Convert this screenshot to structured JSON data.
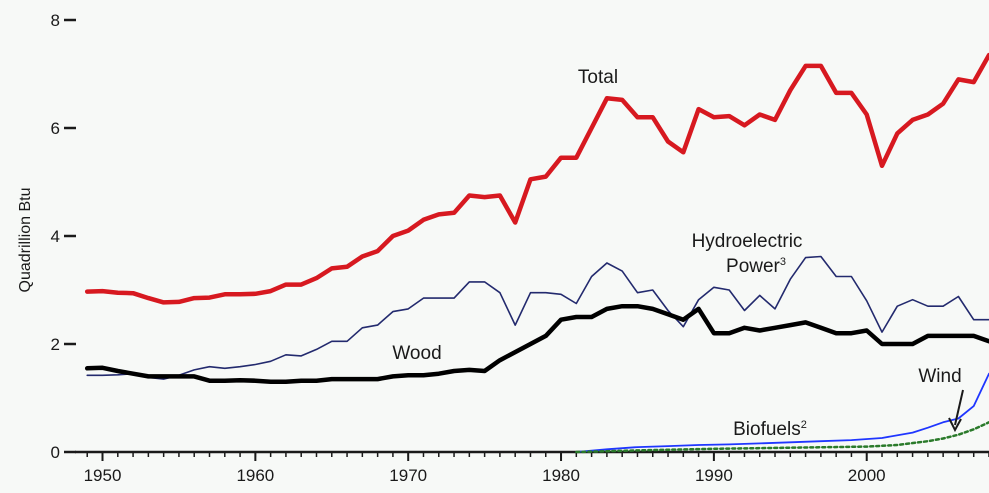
{
  "chart_data": {
    "type": "line",
    "title": "",
    "xlabel": "",
    "ylabel": "Quadrillion Btu",
    "xlim": [
      1949,
      2008
    ],
    "ylim": [
      0,
      8
    ],
    "x_ticks": [
      "1950",
      "1960",
      "1970",
      "1980",
      "1990",
      "2000"
    ],
    "y_ticks": [
      "0",
      "2",
      "4",
      "6",
      "8"
    ],
    "grid": false,
    "legend": "none",
    "series": [
      {
        "name": "Total",
        "color": "#d71920",
        "x": [
          1949,
          1950,
          1951,
          1952,
          1953,
          1954,
          1955,
          1956,
          1957,
          1958,
          1959,
          1960,
          1961,
          1962,
          1963,
          1964,
          1965,
          1966,
          1967,
          1968,
          1969,
          1970,
          1971,
          1972,
          1973,
          1974,
          1975,
          1976,
          1977,
          1978,
          1979,
          1980,
          1981,
          1982,
          1983,
          1984,
          1985,
          1986,
          1987,
          1988,
          1989,
          1990,
          1991,
          1992,
          1993,
          1994,
          1995,
          1996,
          1997,
          1998,
          1999,
          2000,
          2001,
          2002,
          2003,
          2004,
          2005,
          2006,
          2007,
          2008
        ],
        "y": [
          2.97,
          2.98,
          2.95,
          2.94,
          2.85,
          2.77,
          2.78,
          2.85,
          2.86,
          2.92,
          2.92,
          2.93,
          2.98,
          3.1,
          3.1,
          3.22,
          3.4,
          3.43,
          3.62,
          3.72,
          4.0,
          4.1,
          4.3,
          4.4,
          4.43,
          4.75,
          4.72,
          4.75,
          4.25,
          5.05,
          5.1,
          5.45,
          5.45,
          6.0,
          6.55,
          6.52,
          6.2,
          6.2,
          5.75,
          5.55,
          6.35,
          6.2,
          6.22,
          6.05,
          6.25,
          6.15,
          6.7,
          7.15,
          7.15,
          6.65,
          6.65,
          6.25,
          5.3,
          5.9,
          6.15,
          6.25,
          6.45,
          6.9,
          6.85,
          7.35
        ]
      },
      {
        "name": "Hydroelectric Power",
        "color": "#232a6e",
        "x": [
          1949,
          1950,
          1951,
          1952,
          1953,
          1954,
          1955,
          1956,
          1957,
          1958,
          1959,
          1960,
          1961,
          1962,
          1963,
          1964,
          1965,
          1966,
          1967,
          1968,
          1969,
          1970,
          1971,
          1972,
          1973,
          1974,
          1975,
          1976,
          1977,
          1978,
          1979,
          1980,
          1981,
          1982,
          1983,
          1984,
          1985,
          1986,
          1987,
          1988,
          1989,
          1990,
          1991,
          1992,
          1993,
          1994,
          1995,
          1996,
          1997,
          1998,
          1999,
          2000,
          2001,
          2002,
          2003,
          2004,
          2005,
          2006,
          2007,
          2008
        ],
        "y": [
          1.42,
          1.42,
          1.43,
          1.45,
          1.38,
          1.35,
          1.42,
          1.52,
          1.58,
          1.55,
          1.58,
          1.62,
          1.68,
          1.8,
          1.78,
          1.9,
          2.05,
          2.05,
          2.3,
          2.35,
          2.6,
          2.65,
          2.85,
          2.85,
          2.85,
          3.15,
          3.15,
          2.95,
          2.35,
          2.95,
          2.95,
          2.92,
          2.75,
          3.25,
          3.5,
          3.35,
          2.95,
          3.0,
          2.62,
          2.32,
          2.82,
          3.05,
          3.0,
          2.62,
          2.9,
          2.65,
          3.2,
          3.6,
          3.62,
          3.25,
          3.25,
          2.8,
          2.22,
          2.7,
          2.82,
          2.7,
          2.7,
          2.88,
          2.45,
          2.45
        ]
      },
      {
        "name": "Wood",
        "color": "#000000",
        "x": [
          1949,
          1950,
          1951,
          1952,
          1953,
          1954,
          1955,
          1956,
          1957,
          1958,
          1959,
          1960,
          1961,
          1962,
          1963,
          1964,
          1965,
          1966,
          1967,
          1968,
          1969,
          1970,
          1971,
          1972,
          1973,
          1974,
          1975,
          1976,
          1977,
          1978,
          1979,
          1980,
          1981,
          1982,
          1983,
          1984,
          1985,
          1986,
          1987,
          1988,
          1989,
          1990,
          1991,
          1992,
          1993,
          1994,
          1995,
          1996,
          1997,
          1998,
          1999,
          2000,
          2001,
          2002,
          2003,
          2004,
          2005,
          2006,
          2007,
          2008
        ],
        "y": [
          1.55,
          1.56,
          1.5,
          1.45,
          1.4,
          1.4,
          1.4,
          1.4,
          1.32,
          1.32,
          1.33,
          1.32,
          1.3,
          1.3,
          1.32,
          1.32,
          1.35,
          1.35,
          1.35,
          1.35,
          1.4,
          1.42,
          1.42,
          1.45,
          1.5,
          1.52,
          1.5,
          1.7,
          1.85,
          2.0,
          2.15,
          2.45,
          2.5,
          2.5,
          2.65,
          2.7,
          2.7,
          2.65,
          2.55,
          2.45,
          2.65,
          2.2,
          2.2,
          2.3,
          2.25,
          2.3,
          2.35,
          2.4,
          2.3,
          2.2,
          2.2,
          2.25,
          2.0,
          2.0,
          2.0,
          2.15,
          2.15,
          2.15,
          2.15,
          2.05
        ]
      },
      {
        "name": "Wind",
        "color": "#1f36ff",
        "x": [
          1981,
          1983,
          1985,
          1987,
          1989,
          1991,
          1993,
          1995,
          1997,
          1999,
          2001,
          2003,
          2004,
          2005,
          2006,
          2007,
          2008
        ],
        "y": [
          0.0,
          0.05,
          0.09,
          0.11,
          0.13,
          0.14,
          0.16,
          0.18,
          0.2,
          0.22,
          0.26,
          0.36,
          0.45,
          0.55,
          0.62,
          0.85,
          1.45
        ]
      },
      {
        "name": "Biofuels",
        "color": "#2a7a2a",
        "x": [
          1981,
          1985,
          1990,
          1995,
          2000,
          2002,
          2004,
          2005,
          2006,
          2007,
          2008
        ],
        "y": [
          0.0,
          0.03,
          0.06,
          0.08,
          0.1,
          0.13,
          0.2,
          0.25,
          0.32,
          0.42,
          0.55
        ]
      }
    ],
    "annotations": [
      {
        "text": "Total",
        "series": "Total"
      },
      {
        "text": "Hydroelectric",
        "series": "Hydroelectric Power"
      },
      {
        "text": "Power",
        "sup": "3",
        "series": "Hydroelectric Power"
      },
      {
        "text": "Wood",
        "series": "Wood"
      },
      {
        "text": "Wind",
        "series": "Wind"
      },
      {
        "text": "Biofuels",
        "sup": "2",
        "series": "Biofuels"
      }
    ]
  }
}
